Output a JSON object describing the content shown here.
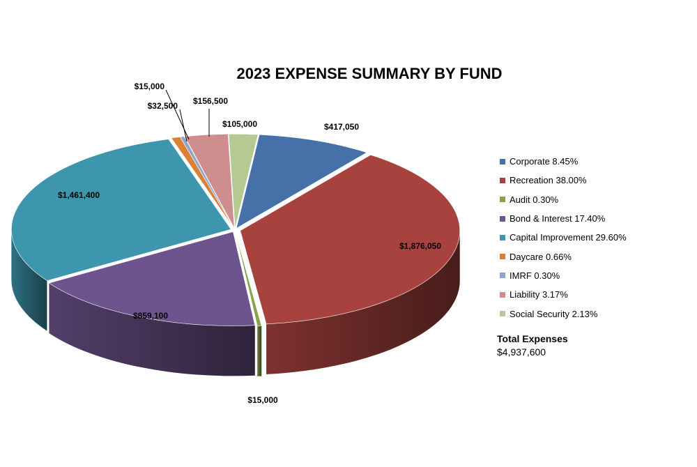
{
  "chart_data": {
    "type": "pie",
    "title": "2023 EXPENSE SUMMARY BY FUND",
    "slices": [
      {
        "legend": "Corporate 8.45%",
        "value": 417050,
        "label": "$417,050",
        "color": "#4571A8"
      },
      {
        "legend": "Recreation 38.00%",
        "value": 1876050,
        "label": "$1,876,050",
        "color": "#A8423F"
      },
      {
        "legend": "Audit 0.30%",
        "value": 15000,
        "label": "$15,000",
        "color": "#86A44A"
      },
      {
        "legend": "Bond & Interest 17.40%",
        "value": 859100,
        "label": "$859,100",
        "color": "#6E548D"
      },
      {
        "legend": "Capital Improvement 29.60%",
        "value": 1461400,
        "label": "$1,461,400",
        "color": "#3D96AE"
      },
      {
        "legend": "Daycare 0.66%",
        "value": 32500,
        "label": "$32,500",
        "color": "#DA8137"
      },
      {
        "legend": "IMRF 0.30%",
        "value": 15000,
        "label": "$15,000",
        "color": "#8EA5CB"
      },
      {
        "legend": "Liability 3.17%",
        "value": 156500,
        "label": "$156,500",
        "color": "#CE8E8D"
      },
      {
        "legend": "Social Security 2.13%",
        "value": 105000,
        "label": "$105,000",
        "color": "#B5CA92"
      }
    ],
    "legend_position": "right"
  },
  "total": {
    "label": "Total Expenses",
    "value": "$4,937,600"
  }
}
